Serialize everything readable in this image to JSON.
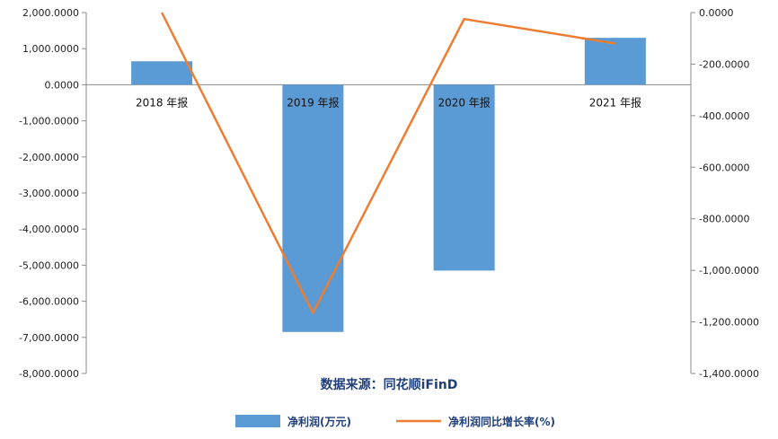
{
  "chart_data": {
    "type": "bar",
    "categories": [
      "2018 年报",
      "2019 年报",
      "2020 年报",
      "2021 年报"
    ],
    "series": [
      {
        "name": "净利润(万元)",
        "type": "bar",
        "axis": "left",
        "color": "#5b9bd5",
        "values": [
          650,
          -6850,
          -5150,
          1300
        ]
      },
      {
        "name": "净利润同比增长率(%)",
        "type": "line",
        "axis": "right",
        "color": "#ed7d31",
        "values": [
          0,
          -1165,
          -25,
          -120
        ]
      }
    ],
    "y_left": {
      "ylim": [
        -8000,
        2000
      ],
      "ticks": [
        2000,
        1000,
        0,
        -1000,
        -2000,
        -3000,
        -4000,
        -5000,
        -6000,
        -7000,
        -8000
      ],
      "tick_labels": [
        "2,000.0000",
        "1,000.0000",
        "0.0000",
        "-1,000.0000",
        "-2,000.0000",
        "-3,000.0000",
        "-4,000.0000",
        "-5,000.0000",
        "-6,000.0000",
        "-7,000.0000",
        "-8,000.0000"
      ]
    },
    "y_right": {
      "ylim": [
        -1400,
        0
      ],
      "ticks": [
        0,
        -200,
        -400,
        -600,
        -800,
        -1000,
        -1200,
        -1400
      ],
      "tick_labels": [
        "0.0000",
        "-200.0000",
        "-400.0000",
        "-600.0000",
        "-800.0000",
        "-1,000.0000",
        "-1,200.0000",
        "-1,400.0000"
      ]
    },
    "grid": false,
    "legend": "bottom-center"
  },
  "source_note": "数据来源：同花顺iFinD"
}
